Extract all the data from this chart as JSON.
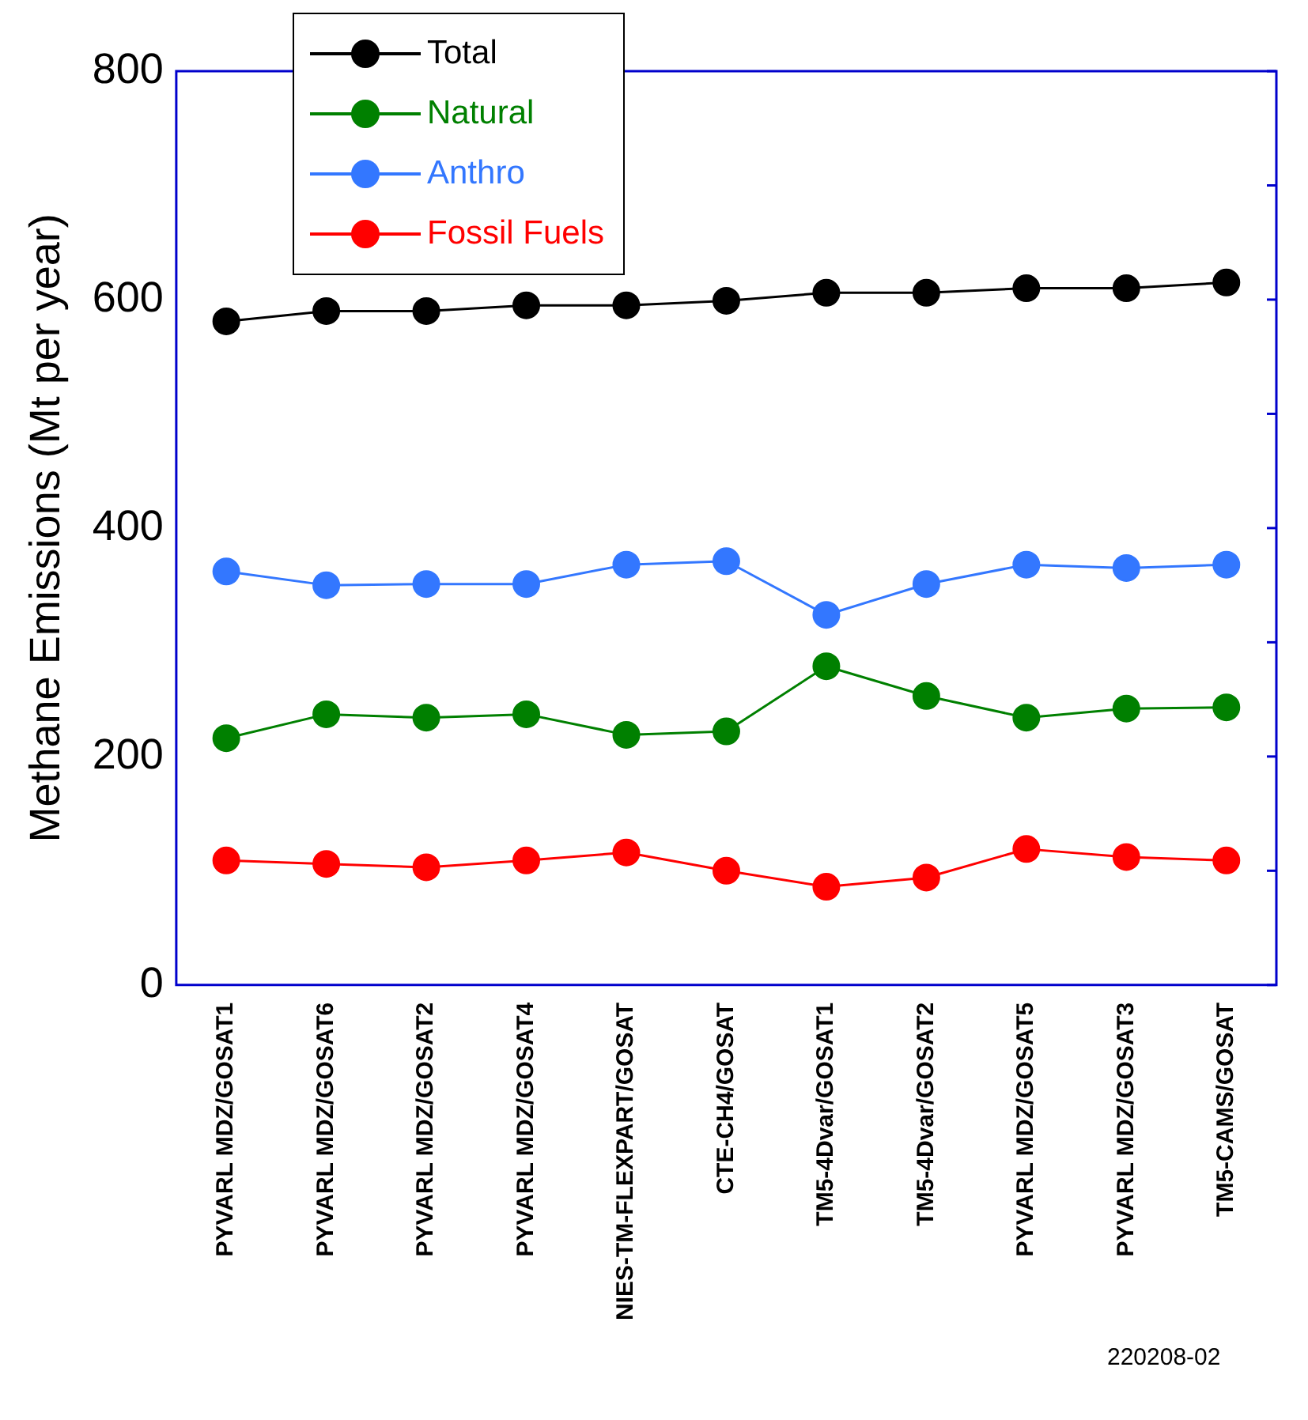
{
  "chart_data": {
    "type": "line",
    "ylabel": "Methane Emissions (Mt per year)",
    "categories": [
      "PYVARL MDZ/GOSAT1",
      "PYVARL MDZ/GOSAT6",
      "PYVARL MDZ/GOSAT2",
      "PYVARL MDZ/GOSAT4",
      "NIES-TM-FLEXPART/GOSAT",
      "CTE-CH4/GOSAT",
      "TM5-4Dvar/GOSAT1",
      "TM5-4Dvar/GOSAT2",
      "PYVARL MDZ/GOSAT5",
      "PYVARL MDZ/GOSAT3",
      "TM5-CAMS/GOSAT"
    ],
    "series": [
      {
        "name": "Total",
        "color": "#000000",
        "values": [
          581,
          590,
          590,
          595,
          595,
          599,
          606,
          606,
          610,
          610,
          615
        ]
      },
      {
        "name": "Natural",
        "color": "#008000",
        "values": [
          216,
          237,
          234,
          237,
          219,
          222,
          279,
          253,
          234,
          242,
          243
        ]
      },
      {
        "name": "Anthro",
        "color": "#3377ff",
        "values": [
          362,
          350,
          351,
          351,
          368,
          371,
          324,
          351,
          368,
          365,
          368
        ]
      },
      {
        "name": "Fossil Fuels",
        "color": "#ff0000",
        "values": [
          109,
          106,
          103,
          109,
          116,
          100,
          86,
          94,
          119,
          112,
          109
        ]
      }
    ],
    "ylim": [
      0,
      800
    ],
    "yticks": [
      0,
      {
        "value": 100,
        "label": null
      },
      200,
      {
        "value": 300,
        "label": null
      },
      400,
      {
        "value": 500,
        "label": null
      },
      600,
      {
        "value": 700,
        "label": null
      },
      800
    ],
    "grid": false,
    "legend": "top left",
    "marker": "circle",
    "line_style": "solid",
    "annotations": [
      "220208-02"
    ]
  }
}
